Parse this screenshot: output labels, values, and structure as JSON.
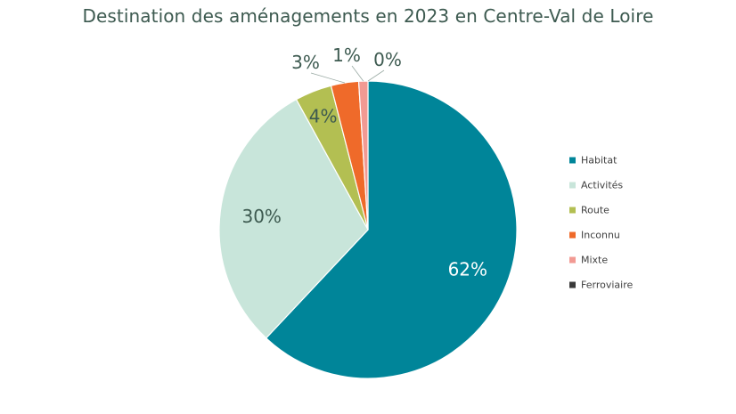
{
  "chart_data": {
    "type": "pie",
    "title": "Destination des aménagements en 2023 en Centre-Val de Loire",
    "legend_position": "right",
    "categories": [
      "Habitat",
      "Activités",
      "Route",
      "Inconnu",
      "Mixte",
      "Ferroviaire"
    ],
    "values": [
      62,
      30,
      4,
      3,
      1,
      0
    ],
    "labels": [
      "62%",
      "30%",
      "4%",
      "3%",
      "1%",
      "0%"
    ],
    "colors": [
      "#008599",
      "#c8e5da",
      "#b3bf52",
      "#ef6a2a",
      "#f29a93",
      "#3a3a3a"
    ]
  }
}
